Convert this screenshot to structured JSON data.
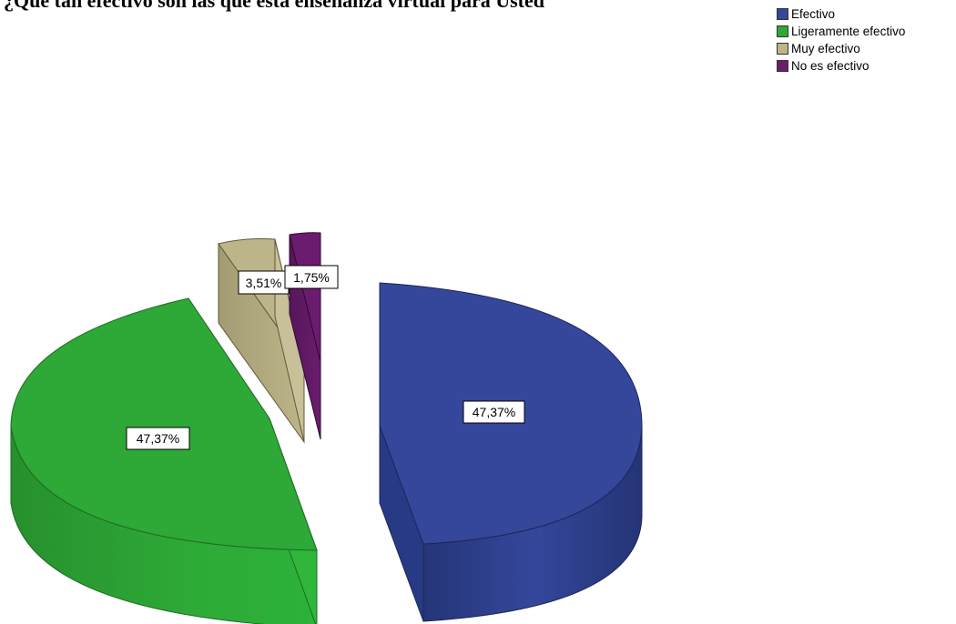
{
  "chart_data": {
    "type": "pie",
    "title": "¿Qué tan efectivo son las que está enseñanza virtual para Usted",
    "categories": [
      "Efectivo",
      "Ligeramente efectivo",
      "Muy efectivo",
      "No es efectivo"
    ],
    "values": [
      47.37,
      47.37,
      3.51,
      1.75
    ],
    "labels": [
      "47,37%",
      "47,37%",
      "3,51%",
      "1,75%"
    ],
    "colors": [
      "#34479b",
      "#2ea836",
      "#bdb58a",
      "#6b1c6e"
    ],
    "legend_position": "top-right",
    "exploded": true,
    "three_d": true
  }
}
